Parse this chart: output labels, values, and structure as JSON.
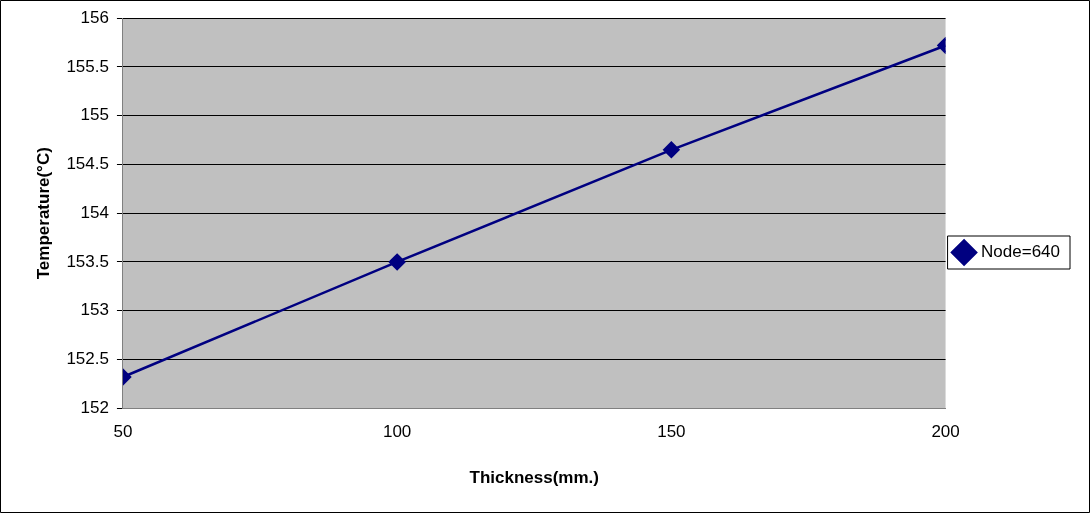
{
  "chart_data": {
    "type": "line",
    "xlabel": "Thickness(mm.)",
    "ylabel": "Temperature(°C)",
    "x": [
      50,
      100,
      150,
      200
    ],
    "series": [
      {
        "name": "Node=640",
        "color": "#000080",
        "values": [
          152.32,
          153.5,
          154.65,
          155.72
        ]
      }
    ],
    "xlim": [
      50,
      200
    ],
    "xticks": [
      50,
      100,
      150,
      200
    ],
    "ylim": [
      152,
      156
    ],
    "yticks": [
      152,
      152.5,
      153,
      153.5,
      154,
      154.5,
      155,
      155.5,
      156
    ],
    "grid": "y",
    "legend": "right",
    "marker": "diamond",
    "line_style": "solid"
  }
}
